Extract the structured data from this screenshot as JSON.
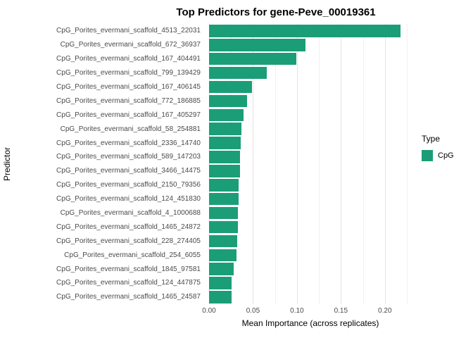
{
  "chart_data": {
    "type": "bar",
    "orientation": "horizontal",
    "title": "Top Predictors for gene-Peve_00019361",
    "xlabel": "Mean Importance (across replicates)",
    "ylabel": "Predictor",
    "bar_color": "#1B9E77",
    "grid": true,
    "legend_position": "right",
    "legend": {
      "title": "Type",
      "entries": [
        {
          "label": "CpG",
          "color": "#1B9E77"
        }
      ]
    },
    "categories": [
      "CpG_Porites_evermani_scaffold_4513_22031",
      "CpG_Porites_evermani_scaffold_672_36937",
      "CpG_Porites_evermani_scaffold_167_404491",
      "CpG_Porites_evermani_scaffold_799_139429",
      "CpG_Porites_evermani_scaffold_167_406145",
      "CpG_Porites_evermani_scaffold_772_186885",
      "CpG_Porites_evermani_scaffold_167_405297",
      "CpG_Porites_evermani_scaffold_58_254881",
      "CpG_Porites_evermani_scaffold_2336_14740",
      "CpG_Porites_evermani_scaffold_589_147203",
      "CpG_Porites_evermani_scaffold_3466_14475",
      "CpG_Porites_evermani_scaffold_2150_79356",
      "CpG_Porites_evermani_scaffold_124_451830",
      "CpG_Porites_evermani_scaffold_4_1000688",
      "CpG_Porites_evermani_scaffold_1465_24872",
      "CpG_Porites_evermani_scaffold_228_274405",
      "CpG_Porites_evermani_scaffold_254_6055",
      "CpG_Porites_evermani_scaffold_1845_97581",
      "CpG_Porites_evermani_scaffold_124_447875",
      "CpG_Porites_evermani_scaffold_1465_24587"
    ],
    "values": [
      0.218,
      0.11,
      0.099,
      0.066,
      0.049,
      0.043,
      0.039,
      0.037,
      0.036,
      0.0355,
      0.035,
      0.034,
      0.034,
      0.033,
      0.0325,
      0.032,
      0.031,
      0.028,
      0.026,
      0.026
    ],
    "xlim": [
      0,
      0.2306
    ],
    "xticks": [
      0,
      0.05,
      0.1,
      0.15,
      0.2
    ],
    "xticks_minor": [
      0.025,
      0.075,
      0.125,
      0.175,
      0.225
    ],
    "xtick_labels": [
      "0.00",
      "0.05",
      "0.10",
      "0.15",
      "0.20"
    ]
  }
}
